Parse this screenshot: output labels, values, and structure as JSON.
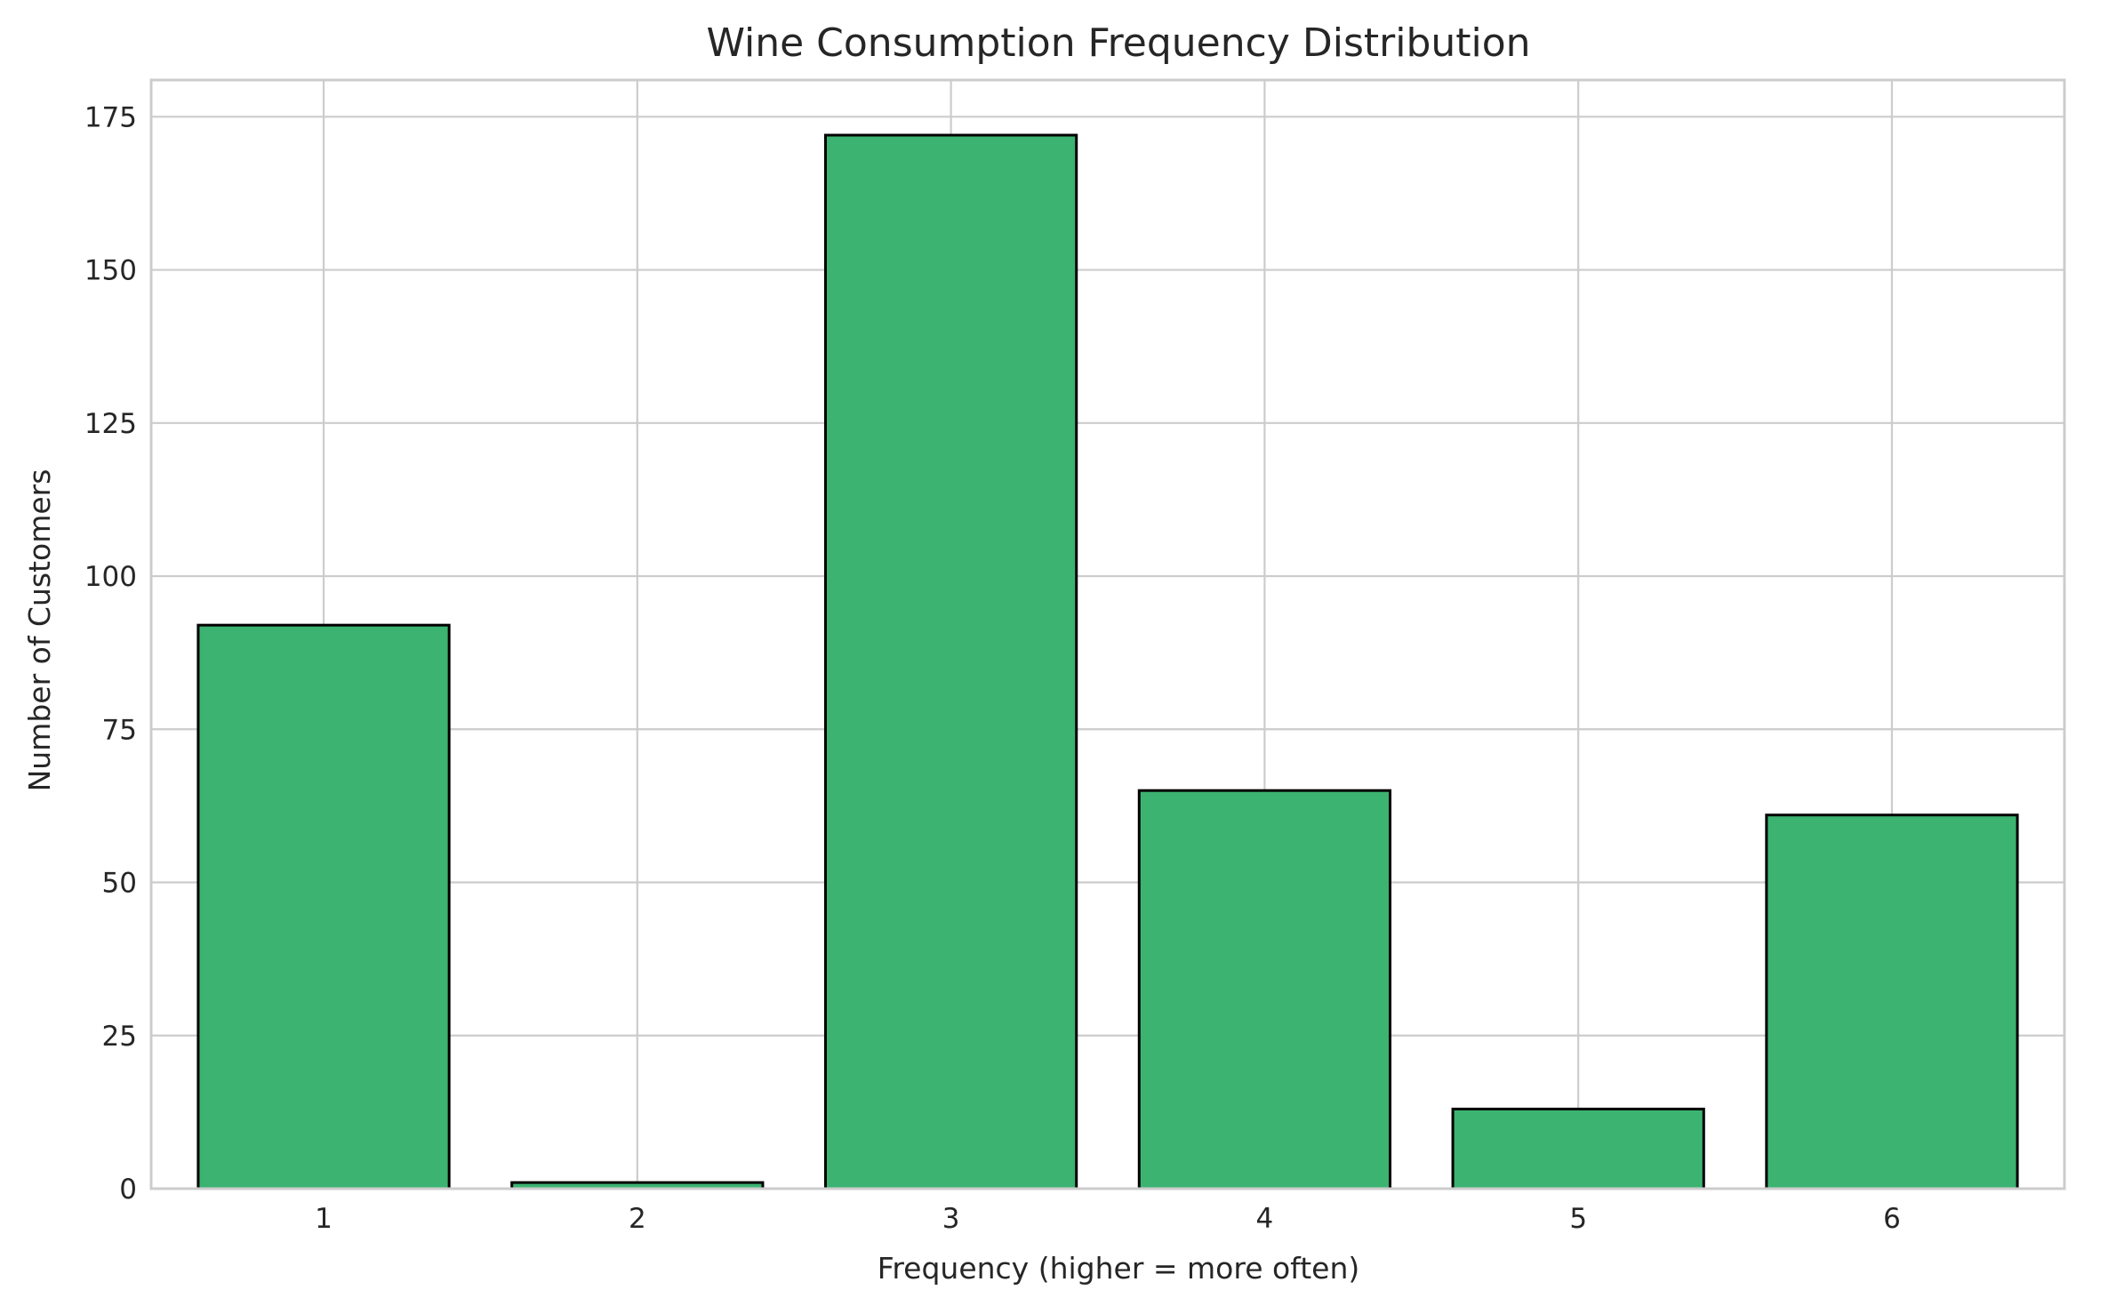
{
  "chart_data": {
    "type": "bar",
    "title": "Wine Consumption Frequency Distribution",
    "xlabel": "Frequency (higher = more often)",
    "ylabel": "Number of Customers",
    "categories": [
      "1",
      "2",
      "3",
      "4",
      "5",
      "6"
    ],
    "values": [
      92,
      1,
      172,
      65,
      13,
      61
    ],
    "ylim": [
      0,
      181
    ],
    "yticks": [
      0,
      25,
      50,
      75,
      100,
      125,
      150,
      175
    ],
    "grid": true,
    "colors": {
      "bar_fill": "#3cb371",
      "bar_edge": "#000000",
      "grid": "#cccccc",
      "axes_edge": "#cccccc",
      "text": "#262626"
    }
  }
}
